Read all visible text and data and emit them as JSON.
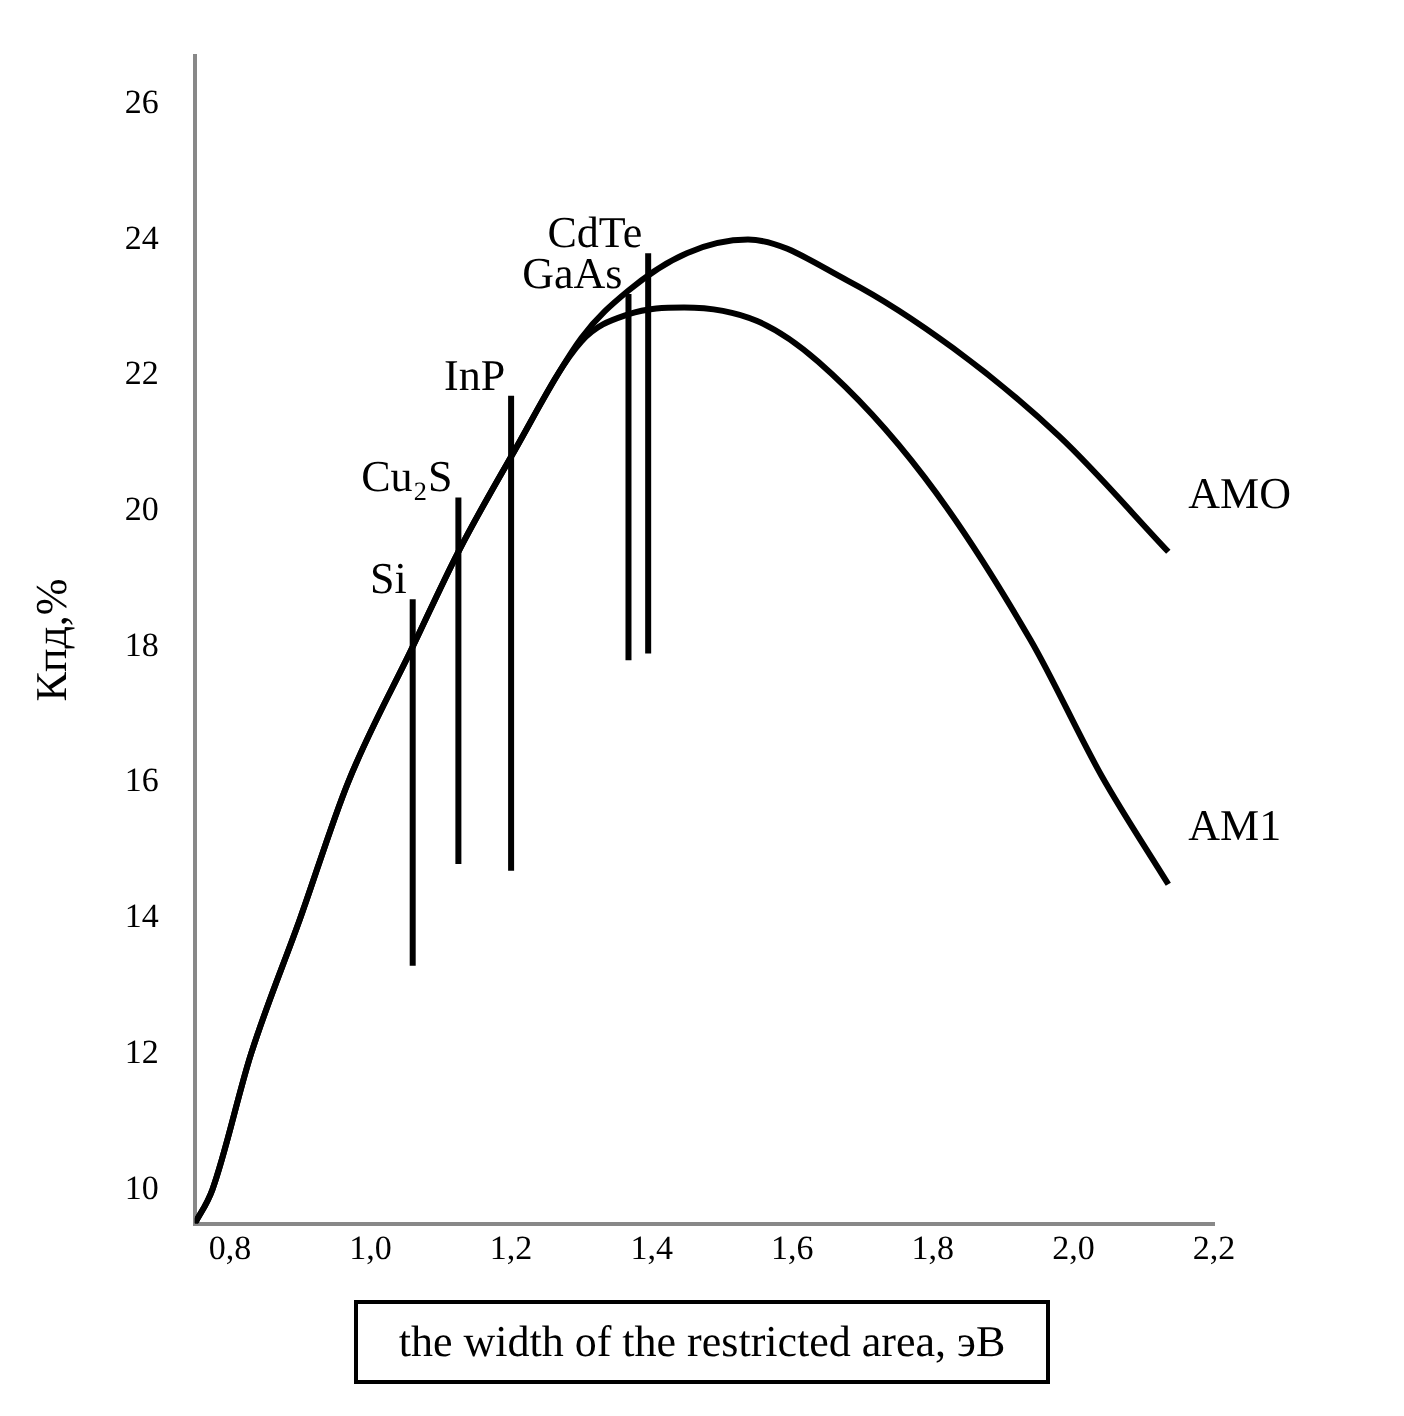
{
  "chart_data": {
    "type": "line",
    "xlabel": "the width of the restricted area, эВ",
    "ylabel": "Кпд,%",
    "xlim": [
      0.75,
      2.2
    ],
    "ylim": [
      9.5,
      26.7
    ],
    "xticks": [
      {
        "value": 0.8,
        "label": "0,8"
      },
      {
        "value": 1.0,
        "label": "1,0"
      },
      {
        "value": 1.2,
        "label": "1,2"
      },
      {
        "value": 1.4,
        "label": "1,4"
      },
      {
        "value": 1.6,
        "label": "1,6"
      },
      {
        "value": 1.8,
        "label": "1,8"
      },
      {
        "value": 2.0,
        "label": "2,0"
      },
      {
        "value": 2.2,
        "label": "2,2"
      }
    ],
    "yticks": [
      10,
      12,
      14,
      16,
      18,
      20,
      22,
      24,
      26
    ],
    "grid": false,
    "legend": false,
    "marker": "none",
    "line_style": "solid",
    "series": [
      {
        "name": "AMO",
        "color": "#000000",
        "x": [
          0.75,
          0.775,
          0.83,
          0.9,
          0.968,
          1.06,
          1.125,
          1.2,
          1.3,
          1.367,
          1.45,
          1.537,
          1.678,
          1.829,
          1.98,
          2.135
        ],
        "values": [
          9.5,
          10,
          12,
          14,
          16,
          18,
          19.4,
          20.8,
          22.55,
          23.25,
          23.8,
          24.0,
          23.4,
          22.4,
          21.1,
          19.4
        ]
      },
      {
        "name": "AM1",
        "color": "#000000",
        "x": [
          0.75,
          0.775,
          0.83,
          0.9,
          0.968,
          1.06,
          1.125,
          1.2,
          1.3,
          1.367,
          1.446,
          1.55,
          1.637,
          1.788,
          1.939,
          2.04,
          2.135
        ],
        "values": [
          9.5,
          10,
          12,
          14,
          16,
          18,
          19.4,
          20.8,
          22.5,
          22.9,
          23.0,
          22.8,
          22.2,
          20.5,
          18.1,
          16.1,
          14.5
        ]
      },
      {
        "name": "Si",
        "color": "#000000",
        "x": [
          1.06,
          1.06
        ],
        "values": [
          13.3,
          18.7
        ]
      },
      {
        "name": "Cu₂S",
        "color": "#000000",
        "x": [
          1.125,
          1.125
        ],
        "values": [
          14.8,
          20.2
        ]
      },
      {
        "name": "InP",
        "color": "#000000",
        "x": [
          1.2,
          1.2
        ],
        "values": [
          14.7,
          21.7
        ]
      },
      {
        "name": "GaAs",
        "color": "#000000",
        "x": [
          1.367,
          1.367
        ],
        "values": [
          17.8,
          23.2
        ]
      },
      {
        "name": "CdTe",
        "color": "#000000",
        "x": [
          1.395,
          1.395
        ],
        "values": [
          17.9,
          23.8
        ]
      }
    ]
  }
}
